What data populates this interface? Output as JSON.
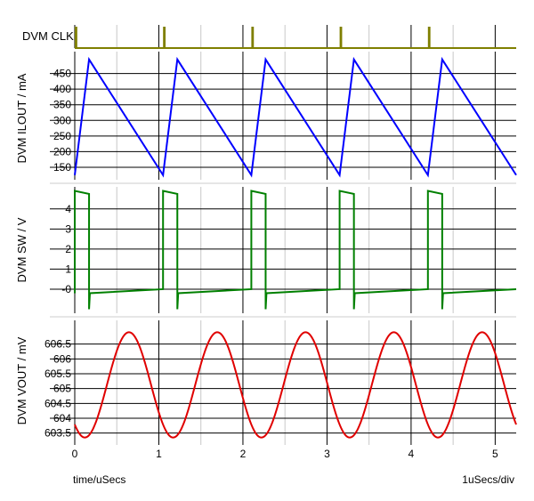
{
  "chart_data": [
    {
      "type": "line",
      "panel": "clk",
      "ylabel": "DVM CLK",
      "color": "#7f7f00",
      "pulse_x": [
        0.0,
        1.05,
        2.1,
        3.15,
        4.2
      ],
      "pulse_width": 0.03,
      "xlim": [
        0,
        5.25
      ]
    },
    {
      "type": "line",
      "panel": "ilout",
      "ylabel": "DVM ILOUT / mA",
      "color": "#0000ff",
      "yticks": [
        "150",
        "200",
        "250",
        "300",
        "350",
        "400",
        "450"
      ],
      "ylim": [
        110,
        520
      ],
      "xlim": [
        0,
        5.25
      ],
      "series": [
        {
          "x": [
            0,
            0.17,
            1.05,
            1.22,
            2.1,
            2.27,
            3.15,
            3.32,
            4.2,
            4.37,
            5.25
          ],
          "values": [
            125,
            495,
            125,
            495,
            125,
            495,
            125,
            495,
            125,
            495,
            125
          ]
        }
      ]
    },
    {
      "type": "line",
      "panel": "sw",
      "ylabel": "DVM SW / V",
      "color": "#008000",
      "yticks": [
        "-0",
        "1",
        "2",
        "3",
        "4"
      ],
      "ylim": [
        -1.2,
        5.1
      ],
      "xlim": [
        0,
        5.25
      ],
      "period": 1.05,
      "high_v": 4.9,
      "high_end_v": 4.75,
      "on_time": 0.17,
      "low_dip_v": -1.0,
      "low_start_v": -0.2,
      "low_end_v": 0.0
    },
    {
      "type": "line",
      "panel": "vout",
      "ylabel": "DVM VOUT / mV",
      "color": "#e00000",
      "yticks": [
        "603.5",
        "604",
        "604.5",
        "605",
        "605.5",
        "606",
        "606.5"
      ],
      "ylim": [
        603.1,
        607.3
      ],
      "xlim": [
        0,
        5.25
      ],
      "xticks": [
        "0",
        "1",
        "2",
        "3",
        "4",
        "5"
      ],
      "xlabel": "time/uSecs",
      "xscale_label": "1uSecs/div",
      "period": 1.05,
      "min_v": 603.35,
      "max_v": 606.9,
      "min_at": 0.12
    }
  ]
}
